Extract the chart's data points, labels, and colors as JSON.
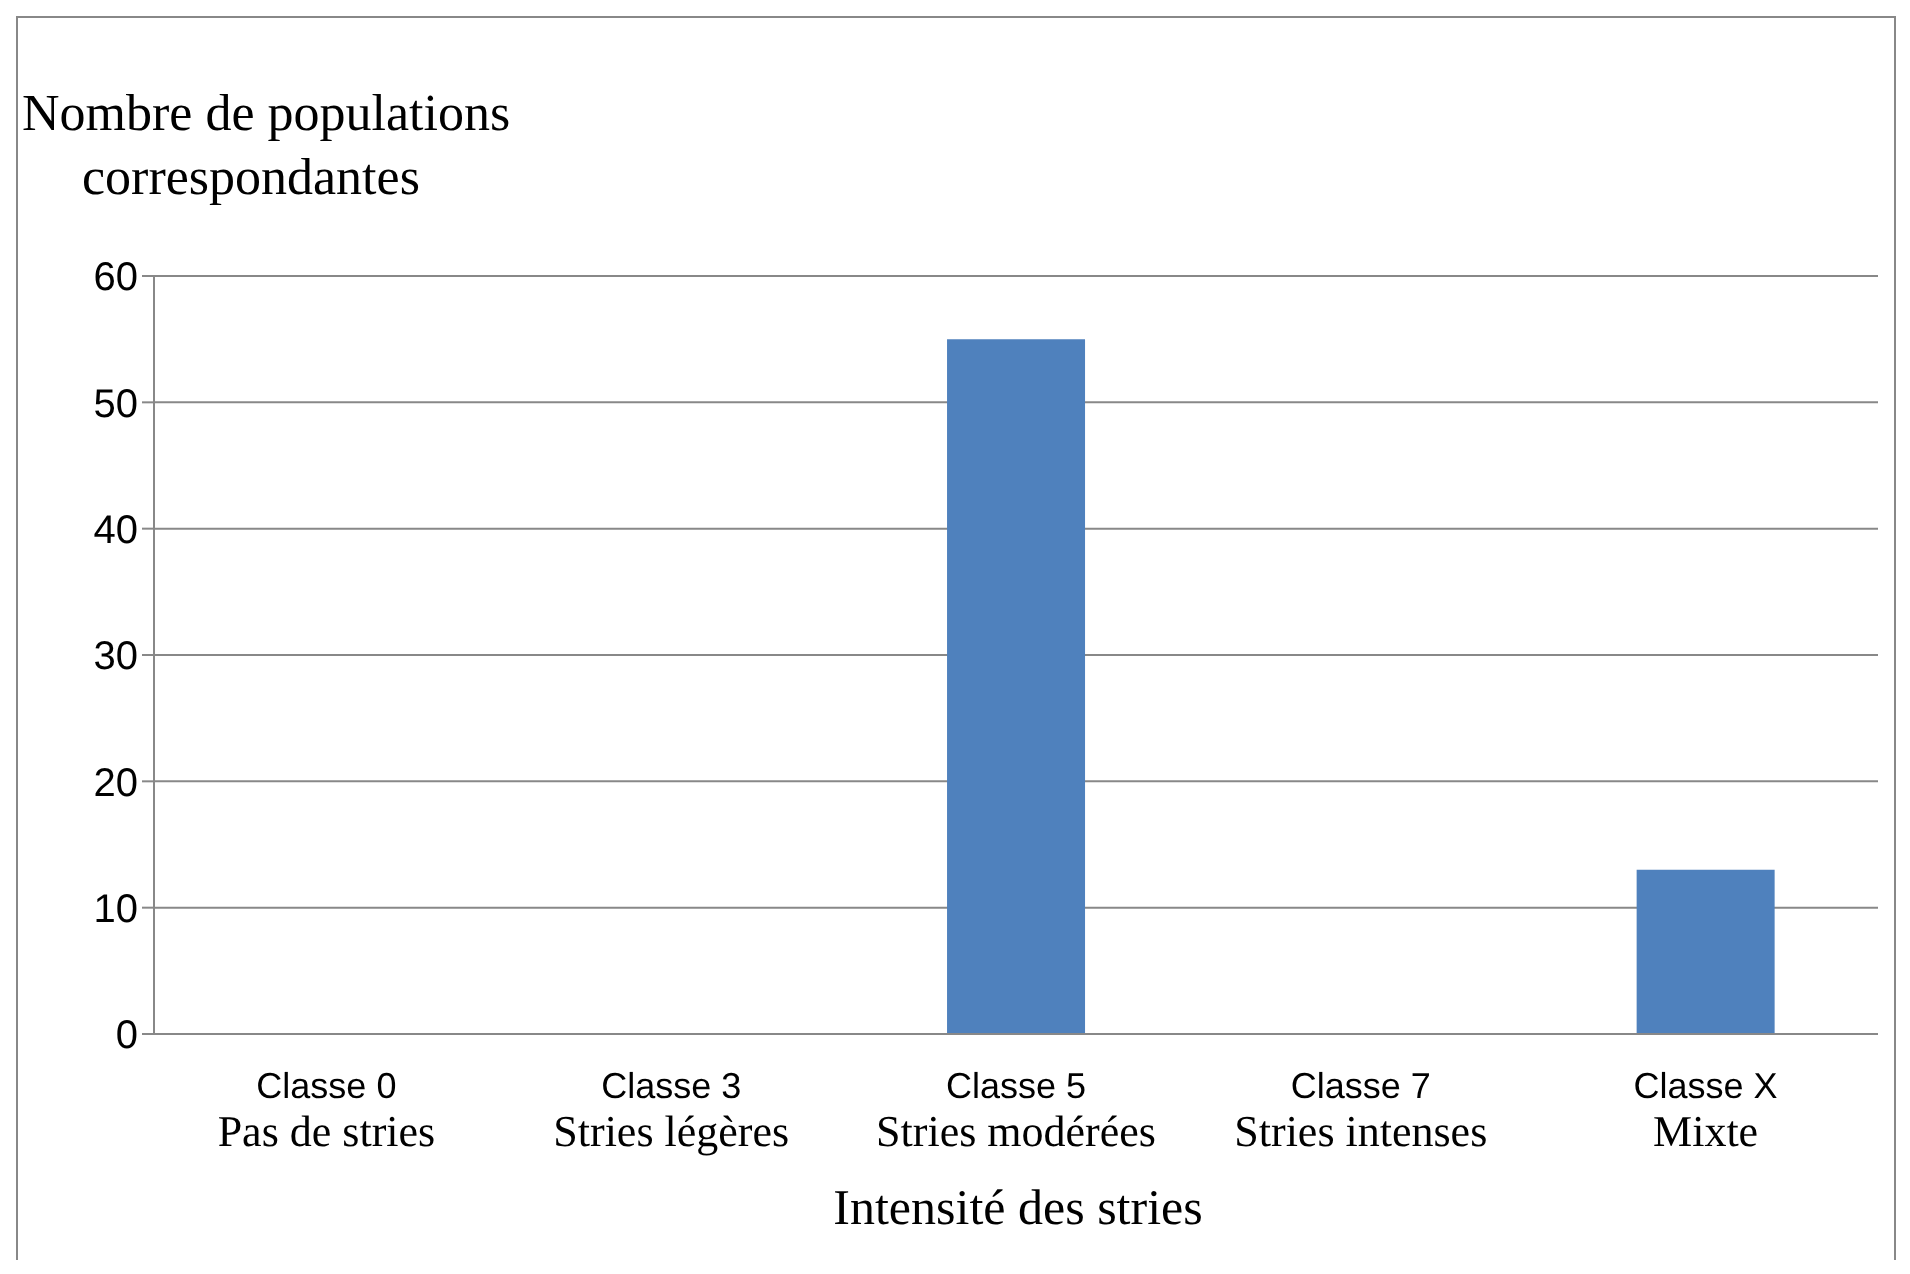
{
  "chart_data": {
    "type": "bar",
    "ylabel": "Nombre de populations\ncorrespondantes",
    "xlabel": "Intensité des stries",
    "categories": [
      "Classe 0\nPas de stries",
      "Classe 3\nStries légères",
      "Classe 5\nStries modérées",
      "Classe 7\nStries intenses",
      "Classe X\nMixte"
    ],
    "values": [
      0,
      0,
      55,
      0,
      13
    ],
    "color": "#4f81bd",
    "ylim": [
      0,
      60
    ],
    "yticks": [
      0,
      10,
      20,
      30,
      40,
      50,
      60
    ],
    "grid": "y",
    "legend": false
  }
}
